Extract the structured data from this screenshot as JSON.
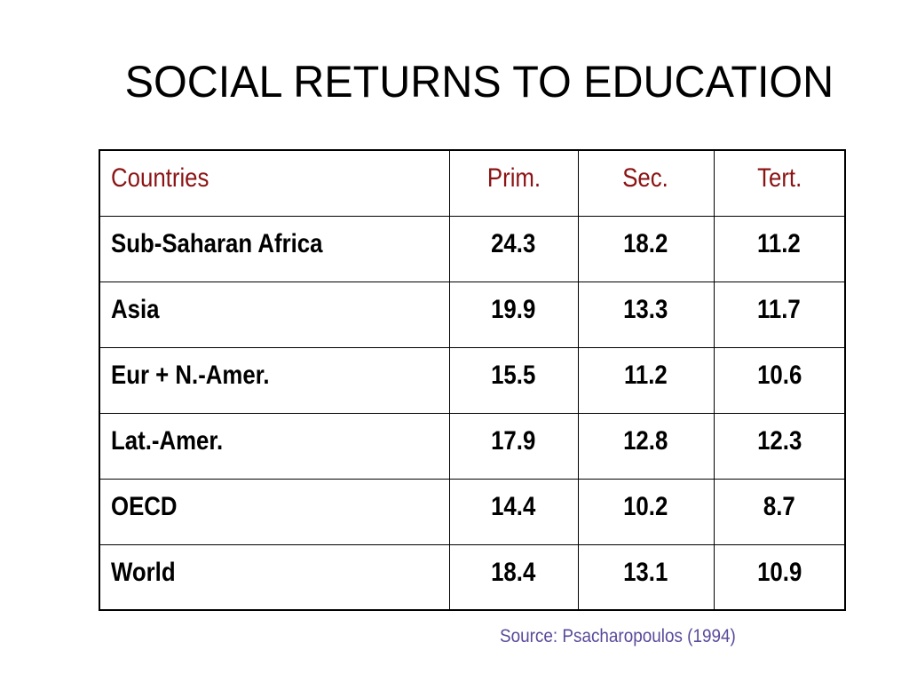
{
  "slide": {
    "title": "SOCIAL RETURNS TO EDUCATION",
    "source": "Source: Psacharopoulos (1994)"
  },
  "table": {
    "columns": [
      "Countries",
      "Prim.",
      "Sec.",
      "Tert."
    ],
    "rows": [
      [
        "Sub-Saharan Africa",
        "24.3",
        "18.2",
        "11.2"
      ],
      [
        "Asia",
        "19.9",
        "13.3",
        "11.7"
      ],
      [
        "Eur + N.-Amer.",
        "15.5",
        "11.2",
        "10.6"
      ],
      [
        "Lat.-Amer.",
        "17.9",
        "12.8",
        "12.3"
      ],
      [
        "OECD",
        "14.4",
        "10.2",
        "8.7"
      ],
      [
        "World",
        "18.4",
        "13.1",
        "10.9"
      ]
    ]
  },
  "colors": {
    "header_text": "#8b1414",
    "source_text": "#5a4a9a",
    "body_text": "#000000"
  }
}
